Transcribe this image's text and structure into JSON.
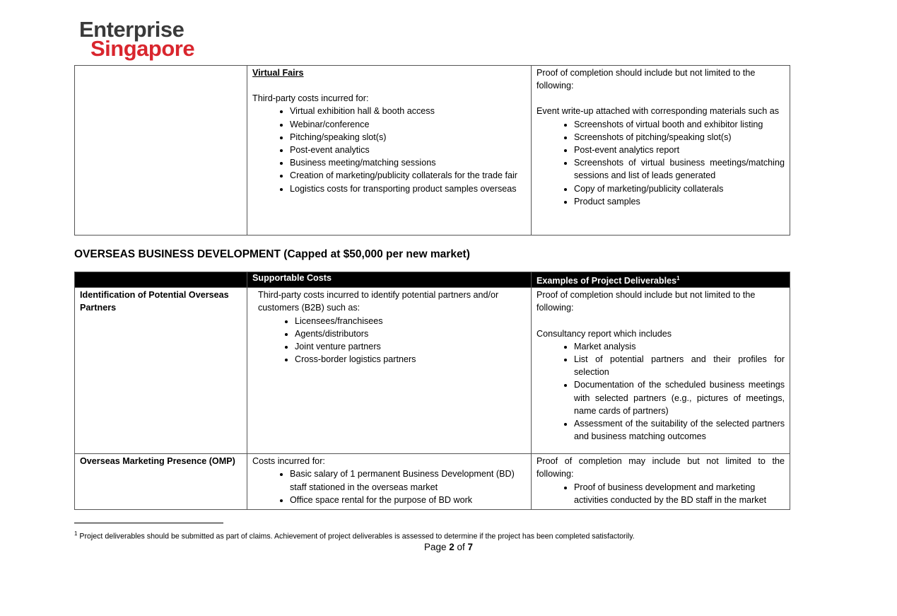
{
  "logo": {
    "line1": "Enterprise",
    "line2": "Singapore"
  },
  "virtual_fairs": {
    "title": "Virtual Fairs",
    "intro": "Third-party costs incurred for:",
    "costs": [
      "Virtual exhibition hall & booth access",
      "Webinar/conference",
      "Pitching/speaking slot(s)",
      "Post-event analytics",
      "Business meeting/matching sessions",
      "Creation of marketing/publicity collaterals for the trade fair",
      "Logistics costs for transporting product samples overseas"
    ],
    "proof_intro": "Proof of completion should include but not limited to the following:",
    "proof_sub": "Event write-up attached with corresponding materials such as",
    "deliverables": [
      "Screenshots of virtual booth and exhibitor listing",
      "Screenshots of pitching/speaking slot(s)",
      "Post-event analytics report",
      "Screenshots of virtual business meetings/matching sessions and list of leads generated",
      "Copy of marketing/publicity collaterals",
      "Product samples"
    ]
  },
  "obd": {
    "heading": "OVERSEAS BUSINESS DEVELOPMENT (Capped at $50,000 per new market)",
    "headers": [
      "",
      "Supportable Costs",
      "Examples of Project Deliverables"
    ],
    "footnote_mark": "1",
    "rows": [
      {
        "name": "Identification of Potential Overseas Partners",
        "intro": "Third-party costs incurred to identify potential partners and/or customers (B2B) such as:",
        "costs": [
          "Licensees/franchisees",
          "Agents/distributors",
          "Joint venture partners",
          "Cross-border logistics partners"
        ],
        "proof_intro": "Proof of completion should include but not limited to the following:",
        "proof_sub": "Consultancy report which includes",
        "deliverables": [
          "Market analysis",
          "List of potential partners and their profiles for selection",
          "Documentation of the scheduled business meetings with selected partners (e.g., pictures of meetings, name cards of partners)",
          "Assessment of the suitability of the selected partners and business matching outcomes"
        ]
      },
      {
        "name": "Overseas Marketing Presence (OMP)",
        "intro": "Costs incurred for:",
        "costs": [
          "Basic salary of 1 permanent Business Development (BD) staff stationed in the overseas market",
          "Office space rental for the purpose of BD work"
        ],
        "proof_intro": "Proof of completion may include but not limited to the following:",
        "deliverables": [
          "Proof of business development and marketing activities conducted by the BD staff in the market"
        ]
      }
    ]
  },
  "footnote": {
    "mark": "1",
    "text": "Project deliverables should be submitted as part of claims. Achievement of project deliverables is assessed to determine if the project has been completed satisfactorily."
  },
  "page": {
    "prefix": "Page",
    "current": "2",
    "of": "of",
    "total": "7"
  }
}
